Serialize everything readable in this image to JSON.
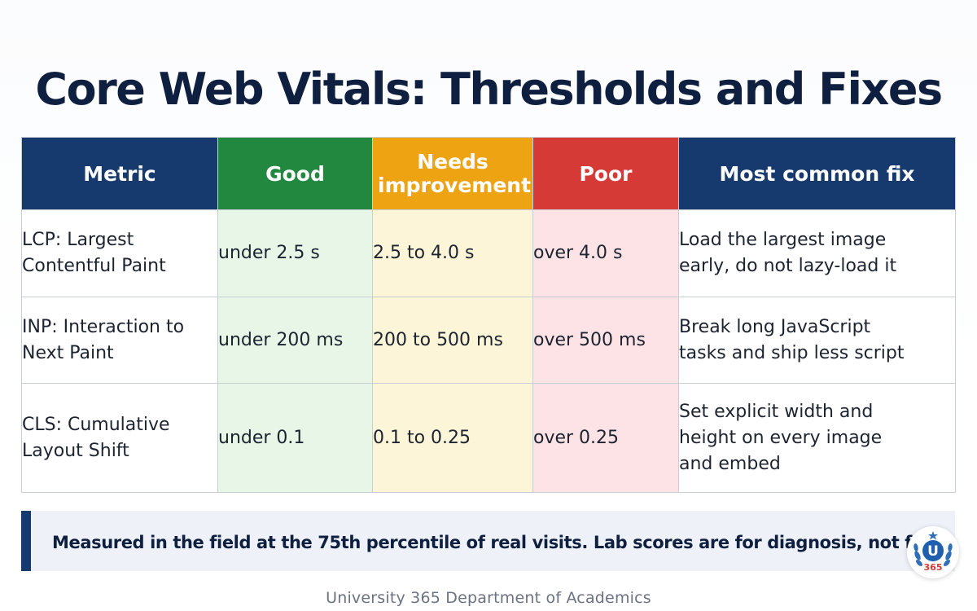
{
  "title": "Core Web Vitals: Thresholds and Fixes",
  "colors": {
    "header_navy": "#163a6e",
    "good": "#22883f",
    "needs_improvement": "#eea312",
    "poor": "#d63a37",
    "good_cell": "#e8f6e7",
    "needs_cell": "#fdf5d8",
    "poor_cell": "#fde3e6"
  },
  "table": {
    "headers": {
      "metric": "Metric",
      "good": "Good",
      "needs_line1": "Needs",
      "needs_line2": "improvement",
      "poor": "Poor",
      "fix": "Most common fix"
    },
    "rows": [
      {
        "metric_line1": "LCP: Largest",
        "metric_line2": "Contentful Paint",
        "good": "under 2.5 s",
        "needs": "2.5 to 4.0 s",
        "poor": "over 4.0 s",
        "fix_lines": [
          "Load the largest image",
          "early, do not lazy-load it"
        ]
      },
      {
        "metric_line1": "INP: Interaction to",
        "metric_line2": "Next Paint",
        "good": "under 200 ms",
        "needs": "200 to 500 ms",
        "poor": "over 500 ms",
        "fix_lines": [
          "Break long JavaScript",
          "tasks and ship less script"
        ]
      },
      {
        "metric_line1": "CLS: Cumulative",
        "metric_line2": "Layout Shift",
        "good": "under 0.1",
        "needs": "0.1 to 0.25",
        "poor": "over 0.25",
        "fix_lines": [
          "Set explicit width and",
          "height on every image",
          "and embed"
        ]
      }
    ]
  },
  "note": "Measured in the field at the 75th percentile of real visits. Lab scores are for diagnosis, not for the verdict.",
  "footer": "University 365 Department of Academics",
  "logo": {
    "icon": "university-365-seal-icon",
    "letter": "U",
    "number": "365"
  }
}
